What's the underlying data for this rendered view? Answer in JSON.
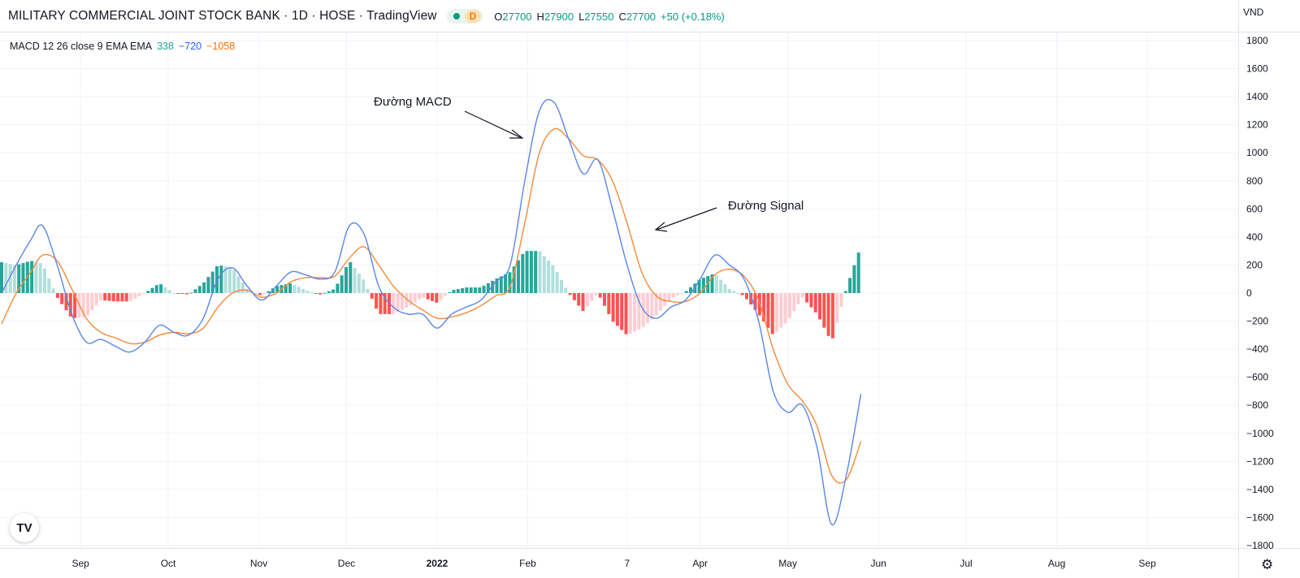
{
  "header": {
    "symbol": "MILITARY COMMERCIAL JOINT STOCK BANK · 1D · HOSE · TradingView",
    "interval_badge": "D",
    "open_label": "O",
    "open": "27700",
    "high_label": "H",
    "high": "27900",
    "low_label": "L",
    "low": "27550",
    "close_label": "C",
    "close": "27700",
    "change": "+50 (+0.18%)"
  },
  "indicator": {
    "label": "MACD 12 26 close 9 EMA EMA",
    "hist_value": "338",
    "macd_value": "−720",
    "signal_value": "−1058"
  },
  "currency": "VND",
  "icons": {
    "logo": "tradingview-logo-icon",
    "settings": "gear-icon",
    "status": "market-open-dot-icon"
  },
  "colors": {
    "macd": "#5b86e5",
    "signal": "#f58a3a",
    "hist_pos_strong": "#26a69a",
    "hist_pos_weak": "#b2dfdb",
    "hist_neg_strong": "#ff5252",
    "hist_neg_weak": "#ffcdd2",
    "grid": "#f0f3fa",
    "axis": "#131722"
  },
  "chart_data": {
    "type": "line",
    "title": "",
    "xlabel": "",
    "ylabel": "",
    "ylim": [
      -1800,
      1800
    ],
    "yticks": [
      1800,
      1600,
      1400,
      1200,
      1000,
      800,
      600,
      400,
      200,
      0,
      -200,
      -400,
      -600,
      -800,
      -1000,
      -1200,
      -1400,
      -1600,
      -1800
    ],
    "ytick_labels": [
      "1800",
      "1600",
      "1400",
      "1200",
      "1000",
      "800",
      "600",
      "400",
      "200",
      "0",
      "−200",
      "−400",
      "−600",
      "−800",
      "−1000",
      "−1200",
      "−1400",
      "−1600",
      "−1800"
    ],
    "xticks": [
      {
        "label": "Sep",
        "date": "2021-09-01"
      },
      {
        "label": "Oct",
        "date": "2021-10-01"
      },
      {
        "label": "Nov",
        "date": "2021-11-01"
      },
      {
        "label": "Dec",
        "date": "2021-12-01"
      },
      {
        "label": "2022",
        "date": "2022-01-01",
        "bold": true
      },
      {
        "label": "Feb",
        "date": "2022-02-01"
      },
      {
        "label": "7",
        "date": "2022-03-07"
      },
      {
        "label": "Apr",
        "date": "2022-04-01"
      },
      {
        "label": "May",
        "date": "2022-05-01"
      },
      {
        "label": "Jun",
        "date": "2022-06-01"
      },
      {
        "label": "Jul",
        "date": "2022-07-01"
      },
      {
        "label": "Aug",
        "date": "2022-08-01"
      },
      {
        "label": "Sep",
        "date": "2022-09-01"
      }
    ],
    "xrange": [
      "2021-08-05",
      "2022-10-01"
    ],
    "series": [
      {
        "name": "MACD",
        "x": [
          "2021-08-05",
          "2021-08-10",
          "2021-08-15",
          "2021-08-19",
          "2021-08-24",
          "2021-08-29",
          "2021-09-03",
          "2021-09-08",
          "2021-09-13",
          "2021-09-18",
          "2021-09-23",
          "2021-09-28",
          "2021-10-03",
          "2021-10-08",
          "2021-10-13",
          "2021-10-18",
          "2021-10-23",
          "2021-10-28",
          "2021-11-02",
          "2021-11-07",
          "2021-11-12",
          "2021-11-17",
          "2021-11-22",
          "2021-11-27",
          "2021-12-02",
          "2021-12-07",
          "2021-12-12",
          "2021-12-17",
          "2021-12-22",
          "2021-12-27",
          "2022-01-01",
          "2022-01-06",
          "2022-01-11",
          "2022-01-16",
          "2022-01-21",
          "2022-01-26",
          "2022-01-31",
          "2022-02-05",
          "2022-02-10",
          "2022-02-15",
          "2022-02-20",
          "2022-02-25",
          "2022-03-02",
          "2022-03-07",
          "2022-03-12",
          "2022-03-17",
          "2022-03-22",
          "2022-03-27",
          "2022-04-01",
          "2022-04-06",
          "2022-04-11",
          "2022-04-16",
          "2022-04-21",
          "2022-04-26",
          "2022-05-01",
          "2022-05-06",
          "2022-05-11",
          "2022-05-16",
          "2022-05-21",
          "2022-05-26"
        ],
        "values": [
          0,
          200,
          380,
          480,
          200,
          -150,
          -350,
          -330,
          -380,
          -420,
          -350,
          -230,
          -280,
          -300,
          -180,
          100,
          180,
          50,
          -50,
          50,
          150,
          130,
          100,
          150,
          480,
          420,
          50,
          -100,
          -150,
          -150,
          -250,
          -150,
          -100,
          -50,
          80,
          200,
          800,
          1300,
          1360,
          1100,
          850,
          950,
          600,
          200,
          -100,
          -180,
          -100,
          -50,
          100,
          270,
          200,
          100,
          -200,
          -700,
          -850,
          -800,
          -1100,
          -1650,
          -1300,
          -720
        ]
      },
      {
        "name": "Signal",
        "x": [
          "2021-08-05",
          "2021-08-10",
          "2021-08-15",
          "2021-08-19",
          "2021-08-24",
          "2021-08-29",
          "2021-09-03",
          "2021-09-08",
          "2021-09-13",
          "2021-09-18",
          "2021-09-23",
          "2021-09-28",
          "2021-10-03",
          "2021-10-08",
          "2021-10-13",
          "2021-10-18",
          "2021-10-23",
          "2021-10-28",
          "2021-11-02",
          "2021-11-07",
          "2021-11-12",
          "2021-11-17",
          "2021-11-22",
          "2021-11-27",
          "2021-12-02",
          "2021-12-07",
          "2021-12-12",
          "2021-12-17",
          "2021-12-22",
          "2021-12-27",
          "2022-01-01",
          "2022-01-06",
          "2022-01-11",
          "2022-01-16",
          "2022-01-21",
          "2022-01-26",
          "2022-01-31",
          "2022-02-05",
          "2022-02-10",
          "2022-02-15",
          "2022-02-20",
          "2022-02-25",
          "2022-03-02",
          "2022-03-07",
          "2022-03-12",
          "2022-03-17",
          "2022-03-22",
          "2022-03-27",
          "2022-04-01",
          "2022-04-06",
          "2022-04-11",
          "2022-04-16",
          "2022-04-21",
          "2022-04-26",
          "2022-05-01",
          "2022-05-06",
          "2022-05-11",
          "2022-05-16",
          "2022-05-21",
          "2022-05-26"
        ],
        "values": [
          -220,
          0,
          150,
          270,
          230,
          30,
          -180,
          -280,
          -320,
          -360,
          -350,
          -300,
          -280,
          -290,
          -250,
          -100,
          0,
          20,
          -30,
          0,
          80,
          110,
          110,
          120,
          250,
          330,
          200,
          50,
          -50,
          -120,
          -180,
          -170,
          -140,
          -90,
          -20,
          50,
          500,
          1000,
          1170,
          1100,
          980,
          950,
          800,
          500,
          150,
          -20,
          -60,
          -60,
          0,
          130,
          170,
          120,
          -50,
          -400,
          -650,
          -770,
          -950,
          -1300,
          -1330,
          -1058
        ]
      }
    ],
    "histogram": {
      "name": "Histogram",
      "x": [
        "2021-08-05",
        "2021-08-10",
        "2021-08-15",
        "2021-08-19",
        "2021-08-24",
        "2021-08-29",
        "2021-09-03",
        "2021-09-08",
        "2021-09-13",
        "2021-09-18",
        "2021-09-23",
        "2021-09-28",
        "2021-10-03",
        "2021-10-08",
        "2021-10-13",
        "2021-10-18",
        "2021-10-23",
        "2021-10-28",
        "2021-11-02",
        "2021-11-07",
        "2021-11-12",
        "2021-11-17",
        "2021-11-22",
        "2021-11-27",
        "2021-12-02",
        "2021-12-07",
        "2021-12-12",
        "2021-12-17",
        "2021-12-22",
        "2021-12-27",
        "2022-01-01",
        "2022-01-06",
        "2022-01-11",
        "2022-01-16",
        "2022-01-21",
        "2022-01-26",
        "2022-01-31",
        "2022-02-05",
        "2022-02-10",
        "2022-02-15",
        "2022-02-20",
        "2022-02-25",
        "2022-03-02",
        "2022-03-07",
        "2022-03-12",
        "2022-03-17",
        "2022-03-22",
        "2022-03-27",
        "2022-04-01",
        "2022-04-06",
        "2022-04-11",
        "2022-04-16",
        "2022-04-21",
        "2022-04-26",
        "2022-05-01",
        "2022-05-06",
        "2022-05-11",
        "2022-05-16",
        "2022-05-21",
        "2022-05-26"
      ],
      "values": [
        220,
        200,
        230,
        210,
        -30,
        -180,
        -170,
        -50,
        -60,
        -60,
        0,
        70,
        0,
        -10,
        70,
        200,
        180,
        30,
        -20,
        50,
        70,
        20,
        -10,
        30,
        230,
        90,
        -150,
        -150,
        -100,
        -30,
        -70,
        20,
        40,
        40,
        100,
        150,
        300,
        300,
        190,
        0,
        -130,
        0,
        -200,
        -300,
        -250,
        -160,
        -40,
        10,
        100,
        140,
        30,
        -20,
        -150,
        -300,
        -200,
        -30,
        -150,
        -350,
        30,
        338
      ]
    }
  },
  "annotations": [
    {
      "text": "Đường MACD",
      "target_series": "MACD"
    },
    {
      "text": "Đường Signal",
      "target_series": "Signal"
    }
  ]
}
